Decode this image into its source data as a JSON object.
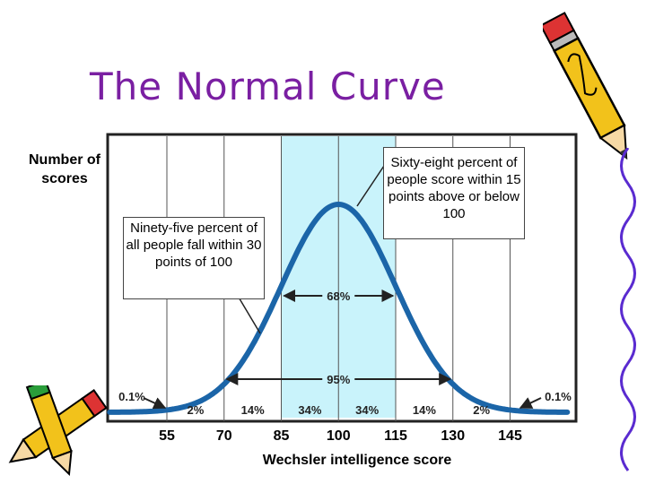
{
  "slide": {
    "title": "The Normal Curve"
  },
  "chart_data": {
    "type": "area",
    "title": "The Normal Curve",
    "ylabel": "Number of scores",
    "xlabel": "Wechsler intelligence score",
    "mean": 100,
    "sd": 15,
    "xlim": [
      40,
      160
    ],
    "x_ticks": [
      55,
      70,
      85,
      100,
      115,
      130,
      145
    ],
    "shaded_range": [
      85,
      115
    ],
    "segments": [
      {
        "label": "0.1%",
        "from": 40,
        "to": 55
      },
      {
        "label": "2%",
        "from": 55,
        "to": 70
      },
      {
        "label": "14%",
        "from": 70,
        "to": 85
      },
      {
        "label": "34%",
        "from": 85,
        "to": 100
      },
      {
        "label": "34%",
        "from": 100,
        "to": 115
      },
      {
        "label": "14%",
        "from": 115,
        "to": 130
      },
      {
        "label": "2%",
        "from": 130,
        "to": 145
      },
      {
        "label": "0.1%",
        "from": 145,
        "to": 160
      }
    ],
    "ranges": [
      {
        "label": "68%",
        "from": 85,
        "to": 115
      },
      {
        "label": "95%",
        "from": 70,
        "to": 130
      }
    ],
    "annotations": [
      "Ninety-five percent of all people fall within 30 points of 100",
      "Sixty-eight percent of people score within 15 points above or below 100"
    ],
    "colors": {
      "curve": "#1b65a8",
      "shade": "#c9f3fb",
      "title": "#7a1fa2"
    },
    "grid": true
  }
}
